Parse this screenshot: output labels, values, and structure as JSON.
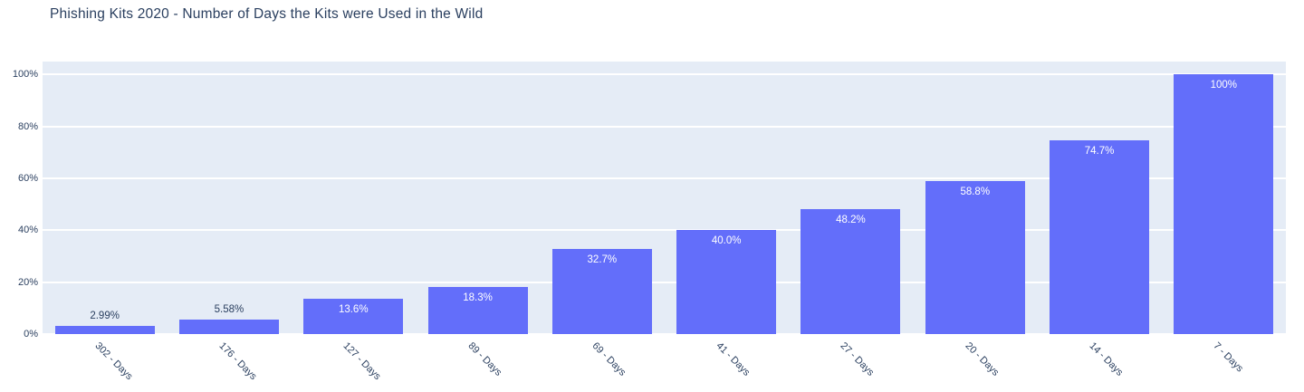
{
  "chart_data": {
    "type": "bar",
    "title": "Phishing Kits 2020 - Number of Days the Kits were Used in the Wild",
    "categories": [
      "302 - Days",
      "176 - Days",
      "127 - Days",
      "89 - Days",
      "69 - Days",
      "41 - Days",
      "27 - Days",
      "20 - Days",
      "14 - Days",
      "7 - Days"
    ],
    "values": [
      2.99,
      5.58,
      13.6,
      18.3,
      32.7,
      40.0,
      48.2,
      58.8,
      74.7,
      100
    ],
    "bar_labels": [
      "2.99%",
      "5.58%",
      "13.6%",
      "18.3%",
      "32.7%",
      "40.0%",
      "48.2%",
      "58.8%",
      "74.7%",
      "100%"
    ],
    "bar_label_positions": [
      "outside",
      "outside",
      "inside",
      "inside",
      "inside",
      "inside",
      "inside",
      "inside",
      "inside",
      "inside"
    ],
    "xlabel": "",
    "ylabel": "",
    "y_ticks": [
      "0%",
      "20%",
      "40%",
      "60%",
      "80%",
      "100%"
    ],
    "y_tick_values": [
      0,
      20,
      40,
      60,
      80,
      100
    ],
    "ylim": [
      0,
      105
    ],
    "grid": true,
    "legend": "none",
    "colors": {
      "bar": "#636efa",
      "plot_bg": "#e5ecf6",
      "grid": "#ffffff",
      "title_text": "#2a3f5f",
      "axis_text": "#2a3f5f",
      "label_inside": "#ffffff",
      "label_outside": "#2a3f5f"
    }
  }
}
